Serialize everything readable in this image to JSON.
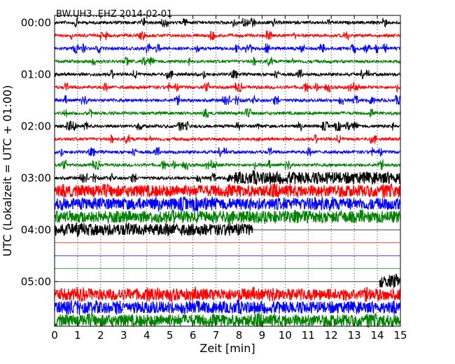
{
  "chart_data": {
    "type": "line",
    "title": "BW.UH3..EHZ 2014-02-01",
    "xlabel": "Zeit  [min]",
    "ylabel": "UTC (Lokalzeit = UTC + 01:00)",
    "xlim": [
      0,
      15
    ],
    "x_ticks": [
      "0",
      "1",
      "2",
      "3",
      "4",
      "5",
      "6",
      "7",
      "8",
      "9",
      "10",
      "11",
      "12",
      "13",
      "14",
      "15"
    ],
    "y_ticks": [
      "00:00",
      "01:00",
      "02:00",
      "03:00",
      "04:00",
      "05:00"
    ],
    "rows_per_hour": 4,
    "row_minutes": 15,
    "grid": {
      "x_dotted_every_min": 1,
      "y": false
    },
    "colors": [
      "#000000",
      "#ff0000",
      "#0000ff",
      "#008000"
    ],
    "series": [
      {
        "start": "00:00",
        "color": "#000000",
        "segments": [
          {
            "from": 0,
            "to": 15,
            "level": "low"
          }
        ]
      },
      {
        "start": "00:15",
        "color": "#ff0000",
        "segments": [
          {
            "from": 0,
            "to": 15,
            "level": "low"
          }
        ]
      },
      {
        "start": "00:30",
        "color": "#0000ff",
        "segments": [
          {
            "from": 0,
            "to": 15,
            "level": "low"
          }
        ]
      },
      {
        "start": "00:45",
        "color": "#008000",
        "segments": [
          {
            "from": 0,
            "to": 15,
            "level": "low"
          }
        ]
      },
      {
        "start": "01:00",
        "color": "#000000",
        "segments": [
          {
            "from": 0,
            "to": 15,
            "level": "low"
          }
        ]
      },
      {
        "start": "01:15",
        "color": "#ff0000",
        "segments": [
          {
            "from": 0,
            "to": 15,
            "level": "low"
          }
        ]
      },
      {
        "start": "01:30",
        "color": "#0000ff",
        "segments": [
          {
            "from": 0,
            "to": 15,
            "level": "low"
          }
        ]
      },
      {
        "start": "01:45",
        "color": "#008000",
        "segments": [
          {
            "from": 0,
            "to": 15,
            "level": "low"
          }
        ]
      },
      {
        "start": "02:00",
        "color": "#000000",
        "segments": [
          {
            "from": 0,
            "to": 15,
            "level": "low"
          }
        ]
      },
      {
        "start": "02:15",
        "color": "#ff0000",
        "segments": [
          {
            "from": 0,
            "to": 15,
            "level": "low"
          }
        ]
      },
      {
        "start": "02:30",
        "color": "#0000ff",
        "segments": [
          {
            "from": 0,
            "to": 15,
            "level": "low"
          }
        ]
      },
      {
        "start": "02:45",
        "color": "#008000",
        "segments": [
          {
            "from": 0,
            "to": 15,
            "level": "low"
          }
        ]
      },
      {
        "start": "03:00",
        "color": "#000000",
        "segments": [
          {
            "from": 0,
            "to": 7.8,
            "level": "low"
          },
          {
            "from": 7.8,
            "to": 15,
            "level": "high"
          }
        ]
      },
      {
        "start": "03:15",
        "color": "#ff0000",
        "segments": [
          {
            "from": 0,
            "to": 15,
            "level": "high"
          }
        ]
      },
      {
        "start": "03:30",
        "color": "#0000ff",
        "segments": [
          {
            "from": 0,
            "to": 15,
            "level": "high"
          }
        ]
      },
      {
        "start": "03:45",
        "color": "#008000",
        "segments": [
          {
            "from": 0,
            "to": 15,
            "level": "high"
          }
        ]
      },
      {
        "start": "04:00",
        "color": "#000000",
        "segments": [
          {
            "from": 0,
            "to": 8.6,
            "level": "high"
          },
          {
            "from": 8.6,
            "to": 15,
            "level": "flat"
          }
        ]
      },
      {
        "start": "04:15",
        "color": "#ff0000",
        "segments": [
          {
            "from": 0,
            "to": 15,
            "level": "flat"
          }
        ]
      },
      {
        "start": "04:30",
        "color": "#0000ff",
        "segments": [
          {
            "from": 0,
            "to": 15,
            "level": "flat"
          }
        ]
      },
      {
        "start": "04:45",
        "color": "#008000",
        "segments": [
          {
            "from": 0,
            "to": 15,
            "level": "flat"
          }
        ]
      },
      {
        "start": "05:00",
        "color": "#000000",
        "segments": [
          {
            "from": 0,
            "to": 14.1,
            "level": "flat"
          },
          {
            "from": 14.1,
            "to": 15,
            "level": "high"
          }
        ]
      },
      {
        "start": "05:15",
        "color": "#ff0000",
        "segments": [
          {
            "from": 0,
            "to": 15,
            "level": "high"
          }
        ]
      },
      {
        "start": "05:30",
        "color": "#0000ff",
        "segments": [
          {
            "from": 0,
            "to": 15,
            "level": "high"
          }
        ]
      },
      {
        "start": "05:45",
        "color": "#008000",
        "segments": [
          {
            "from": 0,
            "to": 15,
            "level": "high"
          }
        ]
      }
    ]
  }
}
